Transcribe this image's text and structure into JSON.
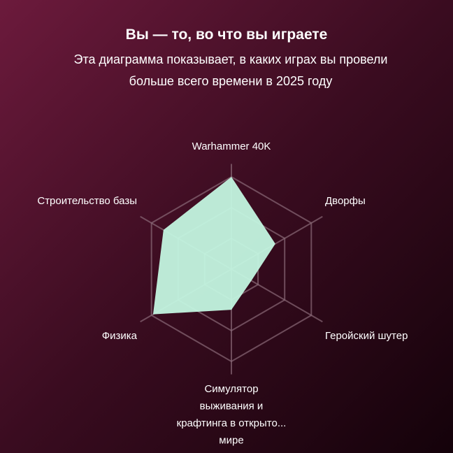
{
  "header": {
    "title": "Вы — то, во что вы играете",
    "subtitle": "Эта диаграмма показывает, в каких играх вы провели больше всего времени в 2025 году"
  },
  "chart_data": {
    "type": "radar",
    "categories": [
      "Warhammer 40K",
      "Дворфы",
      "Геройский шутер",
      "Симулятор выживания и крафтинга в открыто... мире",
      "Физика",
      "Строительство базы"
    ],
    "category_lines": [
      [
        "Warhammer 40K"
      ],
      [
        "Дворфы"
      ],
      [
        "Геройский шутер"
      ],
      [
        "Симулятор",
        "выживания и",
        "крафтинга в открыто...",
        "мире"
      ],
      [
        "Физика"
      ],
      [
        "Строительство базы"
      ]
    ],
    "values": [
      1.0,
      0.55,
      0.25,
      0.44,
      0.98,
      0.85
    ],
    "range": [
      0,
      1
    ],
    "grid_rings": 3,
    "grid": true,
    "fill_color": "#c3f5e0",
    "grid_color": "#8a6a78"
  }
}
